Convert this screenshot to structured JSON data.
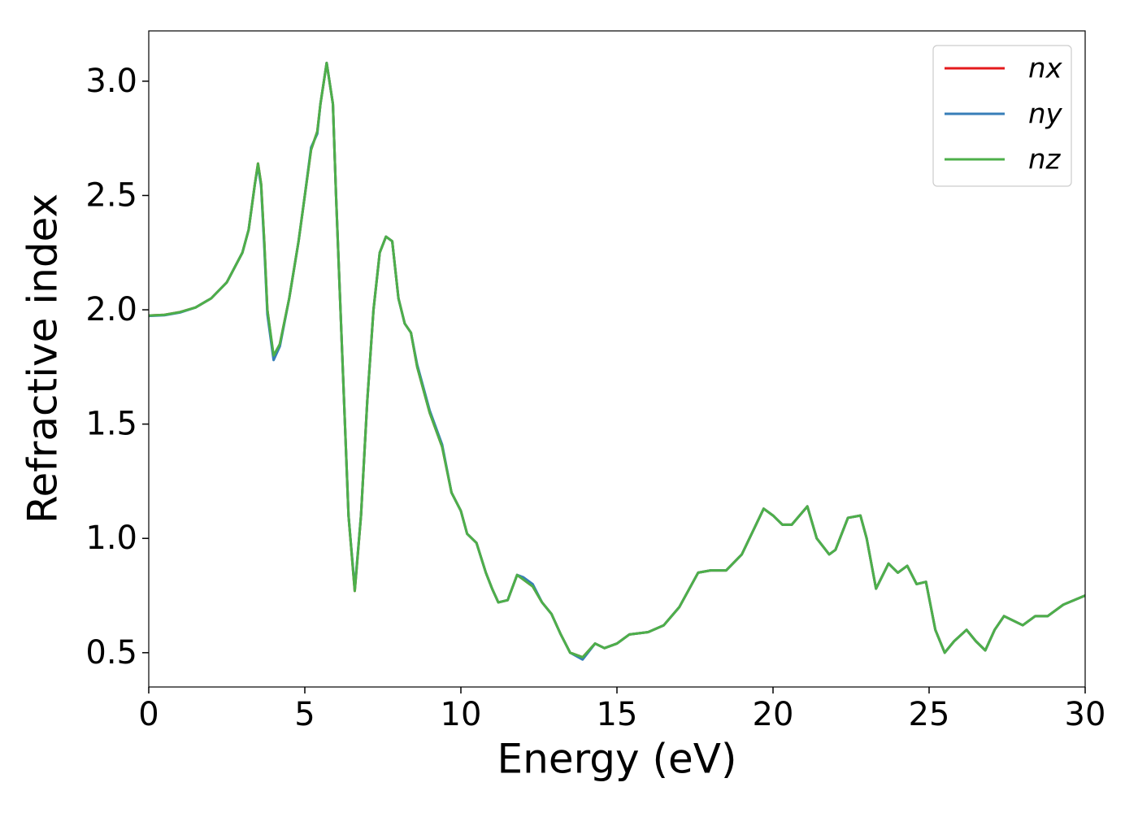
{
  "chart_data": {
    "type": "line",
    "xlabel": "Energy (eV)",
    "ylabel": "Refractive index",
    "x": [
      0,
      0.5,
      1,
      1.5,
      2,
      2.5,
      3,
      3.2,
      3.4,
      3.5,
      3.6,
      3.7,
      3.8,
      4.0,
      4.2,
      4.5,
      4.8,
      5.0,
      5.2,
      5.4,
      5.5,
      5.7,
      5.9,
      6.0,
      6.2,
      6.4,
      6.6,
      6.8,
      7.0,
      7.2,
      7.4,
      7.6,
      7.8,
      8.0,
      8.2,
      8.4,
      8.6,
      9.0,
      9.4,
      9.7,
      10.0,
      10.2,
      10.5,
      10.8,
      11.0,
      11.2,
      11.5,
      11.8,
      12.0,
      12.3,
      12.6,
      12.9,
      13.2,
      13.5,
      13.9,
      14.3,
      14.6,
      15.0,
      15.4,
      16.0,
      16.5,
      17.0,
      17.6,
      18.0,
      18.5,
      19.0,
      19.7,
      20.0,
      20.3,
      20.6,
      21.1,
      21.4,
      21.8,
      22.0,
      22.4,
      22.8,
      23.0,
      23.3,
      23.7,
      24.0,
      24.3,
      24.6,
      24.9,
      25.2,
      25.5,
      25.8,
      26.2,
      26.5,
      26.8,
      27.1,
      27.4,
      28.0,
      28.4,
      28.8,
      29.3,
      30.0
    ],
    "series": [
      {
        "name": "nx",
        "color": "#e41a1c",
        "values": [
          1.975,
          1.978,
          1.99,
          2.01,
          2.05,
          2.12,
          2.25,
          2.35,
          2.55,
          2.64,
          2.55,
          2.3,
          2.0,
          1.79,
          1.85,
          2.05,
          2.3,
          2.5,
          2.7,
          2.78,
          2.9,
          3.08,
          2.9,
          2.5,
          1.8,
          1.1,
          0.77,
          1.1,
          1.6,
          2.0,
          2.25,
          2.32,
          2.3,
          2.05,
          1.94,
          1.9,
          1.75,
          1.55,
          1.4,
          1.2,
          1.12,
          1.02,
          0.98,
          0.85,
          0.78,
          0.72,
          0.73,
          0.84,
          0.82,
          0.79,
          0.72,
          0.67,
          0.58,
          0.5,
          0.48,
          0.54,
          0.52,
          0.54,
          0.58,
          0.59,
          0.62,
          0.7,
          0.85,
          0.86,
          0.86,
          0.93,
          1.13,
          1.1,
          1.06,
          1.06,
          1.14,
          1.0,
          0.93,
          0.95,
          1.09,
          1.1,
          1.0,
          0.78,
          0.89,
          0.85,
          0.88,
          0.8,
          0.81,
          0.6,
          0.5,
          0.55,
          0.6,
          0.55,
          0.51,
          0.6,
          0.66,
          0.62,
          0.66,
          0.66,
          0.71,
          0.75
        ]
      },
      {
        "name": "ny",
        "color": "#377eb8",
        "values": [
          1.973,
          1.976,
          1.988,
          2.01,
          2.05,
          2.12,
          2.25,
          2.35,
          2.55,
          2.63,
          2.54,
          2.28,
          1.98,
          1.78,
          1.84,
          2.05,
          2.3,
          2.5,
          2.71,
          2.77,
          2.9,
          3.08,
          2.9,
          2.5,
          1.8,
          1.1,
          0.78,
          1.1,
          1.6,
          2.0,
          2.25,
          2.32,
          2.3,
          2.05,
          1.94,
          1.9,
          1.76,
          1.56,
          1.41,
          1.2,
          1.12,
          1.02,
          0.98,
          0.85,
          0.78,
          0.72,
          0.73,
          0.84,
          0.83,
          0.8,
          0.72,
          0.67,
          0.58,
          0.5,
          0.47,
          0.54,
          0.52,
          0.54,
          0.58,
          0.59,
          0.62,
          0.7,
          0.85,
          0.86,
          0.86,
          0.93,
          1.13,
          1.1,
          1.06,
          1.06,
          1.14,
          1.0,
          0.93,
          0.95,
          1.09,
          1.1,
          1.0,
          0.78,
          0.89,
          0.85,
          0.88,
          0.8,
          0.81,
          0.6,
          0.5,
          0.55,
          0.6,
          0.55,
          0.51,
          0.6,
          0.66,
          0.62,
          0.66,
          0.66,
          0.71,
          0.75
        ]
      },
      {
        "name": "nz",
        "color": "#4daf4a",
        "values": [
          1.975,
          1.978,
          1.99,
          2.01,
          2.05,
          2.12,
          2.25,
          2.35,
          2.55,
          2.64,
          2.55,
          2.3,
          2.0,
          1.8,
          1.85,
          2.05,
          2.3,
          2.5,
          2.7,
          2.78,
          2.9,
          3.08,
          2.9,
          2.5,
          1.8,
          1.1,
          0.77,
          1.1,
          1.6,
          2.0,
          2.25,
          2.32,
          2.3,
          2.05,
          1.94,
          1.9,
          1.75,
          1.55,
          1.4,
          1.2,
          1.12,
          1.02,
          0.98,
          0.85,
          0.78,
          0.72,
          0.73,
          0.84,
          0.82,
          0.79,
          0.72,
          0.67,
          0.58,
          0.5,
          0.48,
          0.54,
          0.52,
          0.54,
          0.58,
          0.59,
          0.62,
          0.7,
          0.85,
          0.86,
          0.86,
          0.93,
          1.13,
          1.1,
          1.06,
          1.06,
          1.14,
          1.0,
          0.93,
          0.95,
          1.09,
          1.1,
          1.0,
          0.78,
          0.89,
          0.85,
          0.88,
          0.8,
          0.81,
          0.6,
          0.5,
          0.55,
          0.6,
          0.55,
          0.51,
          0.6,
          0.66,
          0.62,
          0.66,
          0.66,
          0.71,
          0.75
        ]
      }
    ],
    "xlim": [
      0,
      30
    ],
    "xticks": [
      0,
      5,
      10,
      15,
      20,
      25,
      30
    ],
    "ylim": [
      0.35,
      3.22
    ],
    "yticks": [
      {
        "value": 0.5,
        "label": "0.5"
      },
      {
        "value": 1.0,
        "label": "1.0"
      },
      {
        "value": 1.5,
        "label": "1.5"
      },
      {
        "value": 2.0,
        "label": "2.0"
      },
      {
        "value": 2.5,
        "label": "2.5"
      },
      {
        "value": 3.0,
        "label": "3.0"
      }
    ],
    "grid": false,
    "legend": "upper right"
  }
}
